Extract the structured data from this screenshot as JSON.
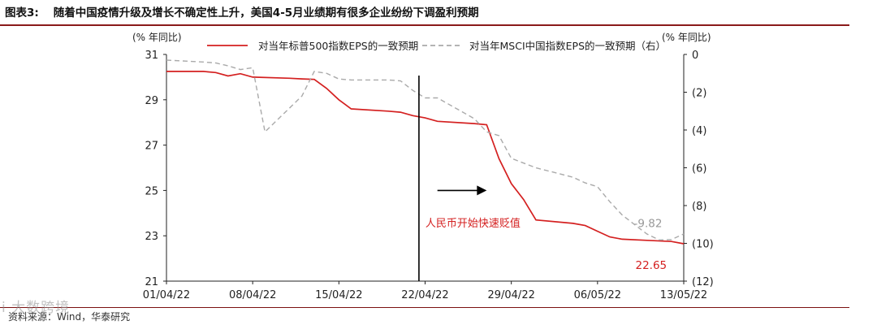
{
  "figure": {
    "label": "图表3:",
    "title": "随着中国疫情升级及增长不确定性上升，美国4-5月业绩期有很多企业纷纷下调盈利预期",
    "source": "资料来源：Wind，华泰研究",
    "watermark": "i 大数跨境"
  },
  "colors": {
    "red": "#d42020",
    "gray": "#aaaaaa",
    "axis": "#222222",
    "rule": "#8a1a1a"
  },
  "chart_data": {
    "type": "line",
    "left_unit": "(% 年同比)",
    "right_unit": "(% 年同比)",
    "left_ylim": [
      21,
      31
    ],
    "left_ticks": [
      "21",
      "23",
      "25",
      "27",
      "29",
      "31"
    ],
    "right_ylim": [
      0,
      -12
    ],
    "right_ticks": [
      "0",
      "(2)",
      "(4)",
      "(6)",
      "(8)",
      "(10)",
      "(12)"
    ],
    "x_range": [
      "2022-04-01",
      "2022-05-13"
    ],
    "x_ticks": [
      "01/04/22",
      "08/04/22",
      "15/04/22",
      "22/04/22",
      "29/04/22",
      "06/05/22",
      "13/05/22"
    ],
    "series": [
      {
        "name": "对当年标普500指数EPS的一致预期",
        "axis": "left",
        "color": "#d42020",
        "dash": "none",
        "points": [
          [
            "2022-04-01",
            30.25
          ],
          [
            "2022-04-04",
            30.25
          ],
          [
            "2022-04-05",
            30.2
          ],
          [
            "2022-04-06",
            30.05
          ],
          [
            "2022-04-07",
            30.15
          ],
          [
            "2022-04-08",
            30.0
          ],
          [
            "2022-04-11",
            29.95
          ],
          [
            "2022-04-12",
            29.92
          ],
          [
            "2022-04-13",
            29.9
          ],
          [
            "2022-04-14",
            29.5
          ],
          [
            "2022-04-15",
            29.0
          ],
          [
            "2022-04-16",
            28.6
          ],
          [
            "2022-04-19",
            28.5
          ],
          [
            "2022-04-20",
            28.45
          ],
          [
            "2022-04-21",
            28.3
          ],
          [
            "2022-04-22",
            28.2
          ],
          [
            "2022-04-23",
            28.05
          ],
          [
            "2022-04-26",
            27.95
          ],
          [
            "2022-04-27",
            27.9
          ],
          [
            "2022-04-28",
            26.4
          ],
          [
            "2022-04-29",
            25.3
          ],
          [
            "2022-04-30",
            24.6
          ],
          [
            "2022-05-01",
            23.7
          ],
          [
            "2022-05-04",
            23.55
          ],
          [
            "2022-05-05",
            23.45
          ],
          [
            "2022-05-06",
            23.2
          ],
          [
            "2022-05-07",
            22.95
          ],
          [
            "2022-05-08",
            22.85
          ],
          [
            "2022-05-10",
            22.8
          ],
          [
            "2022-05-12",
            22.75
          ],
          [
            "2022-05-13",
            22.65
          ]
        ]
      },
      {
        "name": "对当年MSCI中国指数EPS的一致预期（右）",
        "axis": "right",
        "color": "#aaaaaa",
        "dash": "6,4",
        "points": [
          [
            "2022-04-01",
            -0.3
          ],
          [
            "2022-04-04",
            -0.4
          ],
          [
            "2022-04-05",
            -0.45
          ],
          [
            "2022-04-06",
            -0.6
          ],
          [
            "2022-04-07",
            -0.8
          ],
          [
            "2022-04-08",
            -0.7
          ],
          [
            "2022-04-09",
            -4.1
          ],
          [
            "2022-04-12",
            -2.2
          ],
          [
            "2022-04-13",
            -0.9
          ],
          [
            "2022-04-14",
            -1.0
          ],
          [
            "2022-04-15",
            -1.3
          ],
          [
            "2022-04-16",
            -1.35
          ],
          [
            "2022-04-19",
            -1.35
          ],
          [
            "2022-04-20",
            -1.4
          ],
          [
            "2022-04-21",
            -1.9
          ],
          [
            "2022-04-22",
            -2.3
          ],
          [
            "2022-04-23",
            -2.3
          ],
          [
            "2022-04-26",
            -3.4
          ],
          [
            "2022-04-27",
            -4.1
          ],
          [
            "2022-04-28",
            -4.3
          ],
          [
            "2022-04-29",
            -5.5
          ],
          [
            "2022-05-01",
            -6.0
          ],
          [
            "2022-05-04",
            -6.5
          ],
          [
            "2022-05-05",
            -6.8
          ],
          [
            "2022-05-06",
            -7.0
          ],
          [
            "2022-05-07",
            -7.8
          ],
          [
            "2022-05-08",
            -8.5
          ],
          [
            "2022-05-09",
            -9.0
          ],
          [
            "2022-05-10",
            -9.5
          ],
          [
            "2022-05-11",
            -9.82
          ],
          [
            "2022-05-12",
            -9.8
          ],
          [
            "2022-05-13",
            -9.5
          ]
        ]
      }
    ],
    "event_line_date": "2022-04-21",
    "annotation_arrow": {
      "from": "2022-04-23",
      "to": "2022-04-27",
      "y": 25.0
    },
    "annotation_text": "人民币开始快速贬值",
    "data_labels": [
      {
        "text": "22.65",
        "date": "2022-05-10",
        "axis": "left",
        "value": 22.65
      },
      {
        "text": "-9.82",
        "date": "2022-05-10",
        "axis": "right",
        "value": -9.82
      }
    ]
  }
}
